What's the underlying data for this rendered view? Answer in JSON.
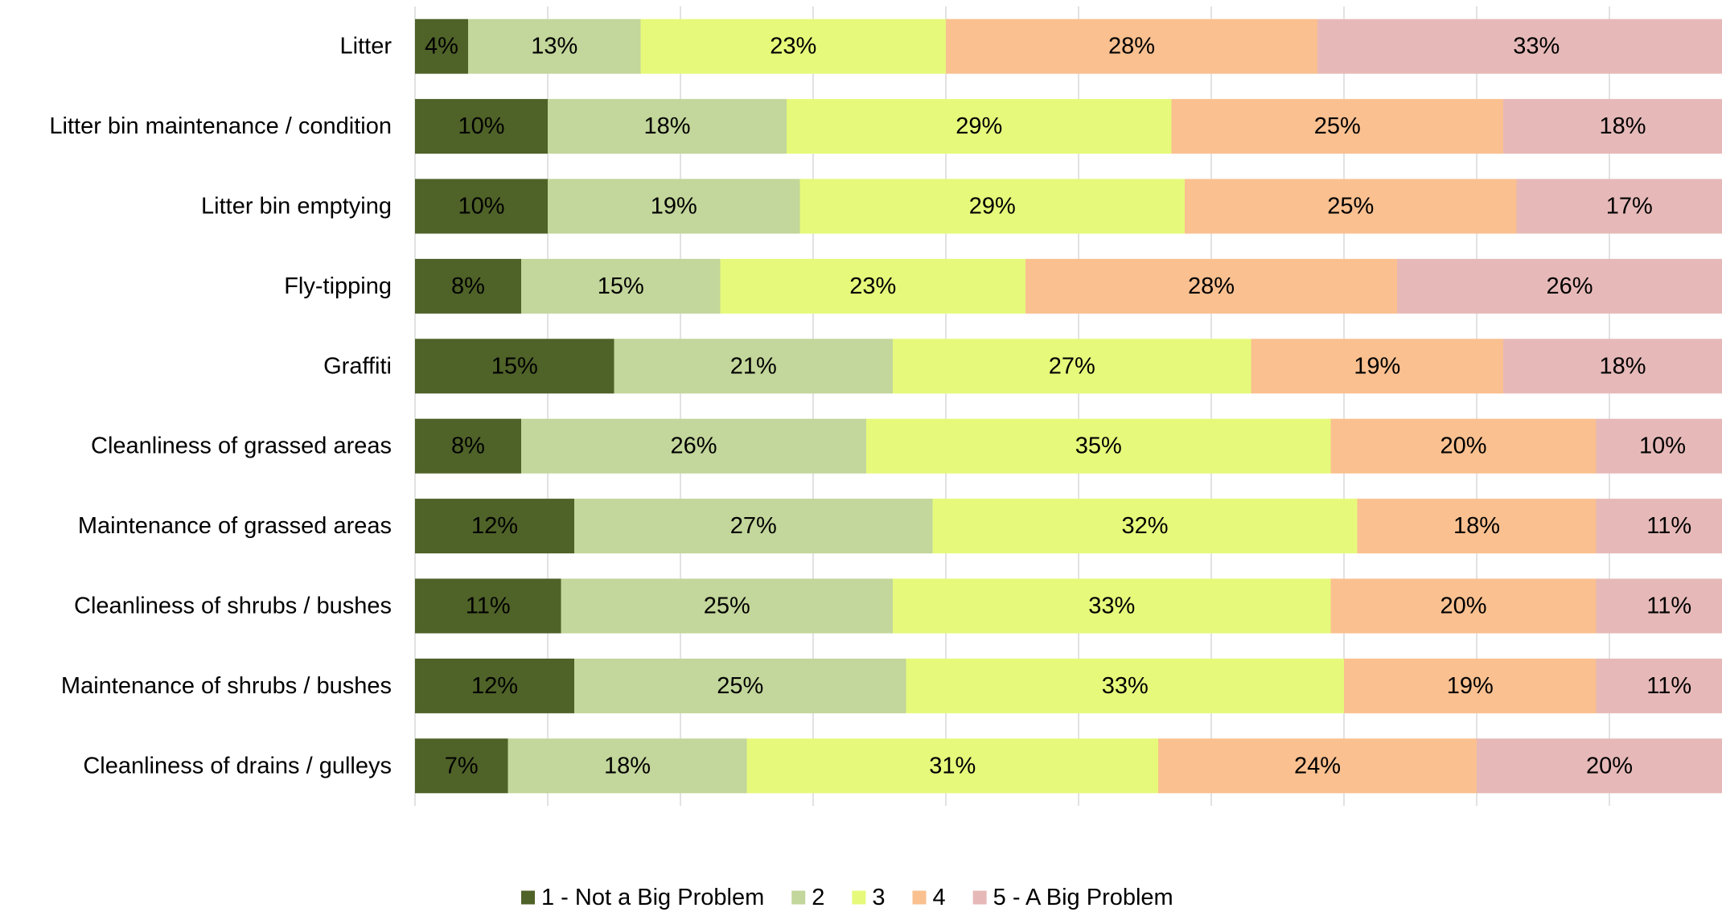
{
  "chart_data": {
    "type": "bar",
    "orientation": "horizontal",
    "stacked": true,
    "title": "",
    "xlabel": "",
    "ylabel": "",
    "xlim": [
      0,
      100
    ],
    "grid": true,
    "legend_position": "bottom",
    "categories": [
      "Litter",
      "Litter bin maintenance / condition",
      "Litter bin emptying",
      "Fly-tipping",
      "Graffiti",
      "Cleanliness of grassed areas",
      "Maintenance of grassed areas",
      "Cleanliness of shrubs / bushes",
      "Maintenance of shrubs / bushes",
      "Cleanliness of drains / gulleys"
    ],
    "series": [
      {
        "name": "1 - Not a Big Problem",
        "color": "#4f6228",
        "values": [
          4,
          10,
          10,
          8,
          15,
          8,
          12,
          11,
          12,
          7
        ]
      },
      {
        "name": "2",
        "color": "#c3d69b",
        "values": [
          13,
          18,
          19,
          15,
          21,
          26,
          27,
          25,
          25,
          18
        ]
      },
      {
        "name": "3",
        "color": "#e6f97b",
        "values": [
          23,
          29,
          29,
          23,
          27,
          35,
          32,
          33,
          33,
          31
        ]
      },
      {
        "name": "4",
        "color": "#fac090",
        "values": [
          28,
          25,
          25,
          28,
          19,
          20,
          18,
          20,
          19,
          24
        ]
      },
      {
        "name": "5 - A Big Problem",
        "color": "#e6b9b8",
        "values": [
          33,
          18,
          17,
          26,
          18,
          10,
          11,
          11,
          11,
          20
        ]
      }
    ],
    "value_suffix": "%"
  }
}
